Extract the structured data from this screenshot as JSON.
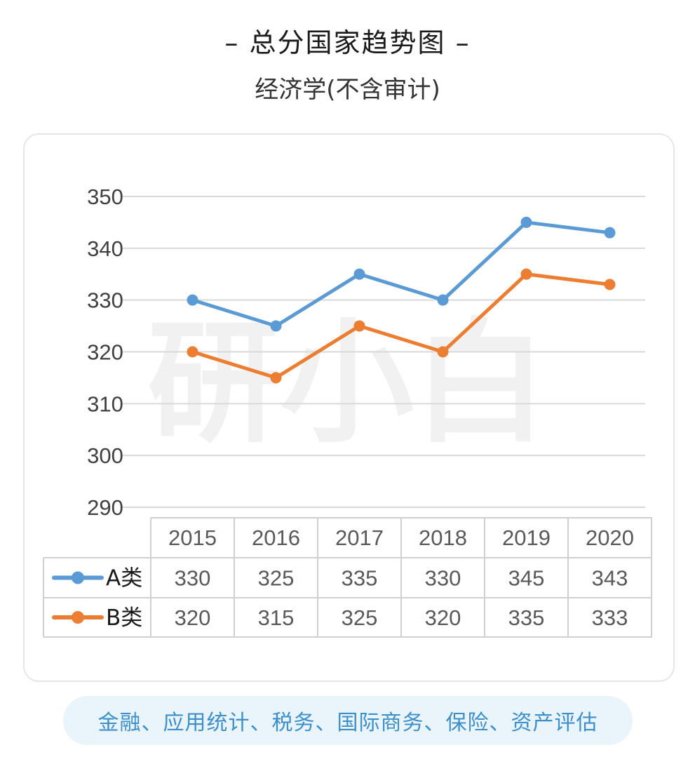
{
  "title": "总分国家趋势图",
  "subtitle": "经济学(不含审计)",
  "footer": "金融、应用统计、税务、国际商务、保险、资产评估",
  "watermark": "研小白",
  "colors": {
    "A": "#5b9bd5",
    "B": "#ed7d31",
    "grid": "#d9d9d9",
    "axis_text": "#404040",
    "table_text": "#595959"
  },
  "chart_data": {
    "type": "line",
    "categories": [
      "2015",
      "2016",
      "2017",
      "2018",
      "2019",
      "2020"
    ],
    "series": [
      {
        "name": "A类",
        "values": [
          330,
          325,
          335,
          330,
          345,
          343
        ]
      },
      {
        "name": "B类",
        "values": [
          320,
          315,
          325,
          320,
          335,
          333
        ]
      }
    ],
    "yticks": [
      290,
      300,
      310,
      320,
      330,
      340,
      350
    ],
    "ylim": [
      290,
      350
    ],
    "grid": true,
    "legend": "data-table"
  }
}
